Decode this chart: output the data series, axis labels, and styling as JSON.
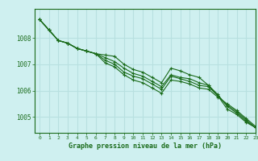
{
  "title": "Graphe pression niveau de la mer (hPa)",
  "background_color": "#cff0f0",
  "grid_color": "#b8e0e0",
  "line_color": "#1a6b1a",
  "marker_color": "#1a6b1a",
  "xlim": [
    -0.5,
    23
  ],
  "ylim": [
    1004.4,
    1009.1
  ],
  "yticks": [
    1005,
    1006,
    1007,
    1008
  ],
  "xticks": [
    0,
    1,
    2,
    3,
    4,
    5,
    6,
    7,
    8,
    9,
    10,
    11,
    12,
    13,
    14,
    15,
    16,
    17,
    18,
    19,
    20,
    21,
    22,
    23
  ],
  "series": [
    [
      1008.7,
      1008.3,
      1007.9,
      1007.8,
      1007.6,
      1007.5,
      1007.4,
      1007.35,
      1007.3,
      1007.0,
      1006.8,
      1006.7,
      1006.5,
      1006.3,
      1006.85,
      1006.75,
      1006.6,
      1006.5,
      1006.2,
      1005.8,
      1005.3,
      1005.1,
      1004.8,
      1004.6
    ],
    [
      1008.7,
      1008.3,
      1007.9,
      1007.8,
      1007.6,
      1007.5,
      1007.4,
      1007.25,
      1007.1,
      1006.85,
      1006.65,
      1006.55,
      1006.35,
      1006.15,
      1006.6,
      1006.5,
      1006.45,
      1006.3,
      1006.2,
      1005.85,
      1005.4,
      1005.15,
      1004.85,
      1004.6
    ],
    [
      1008.7,
      1008.3,
      1007.9,
      1007.8,
      1007.6,
      1007.5,
      1007.4,
      1007.15,
      1007.0,
      1006.7,
      1006.55,
      1006.45,
      1006.25,
      1006.05,
      1006.55,
      1006.45,
      1006.35,
      1006.2,
      1006.15,
      1005.8,
      1005.45,
      1005.2,
      1004.9,
      1004.6
    ],
    [
      1008.7,
      1008.3,
      1007.9,
      1007.8,
      1007.6,
      1007.5,
      1007.4,
      1007.05,
      1006.9,
      1006.6,
      1006.4,
      1006.3,
      1006.1,
      1005.9,
      1006.4,
      1006.35,
      1006.25,
      1006.1,
      1006.05,
      1005.75,
      1005.5,
      1005.25,
      1004.95,
      1004.65
    ]
  ]
}
